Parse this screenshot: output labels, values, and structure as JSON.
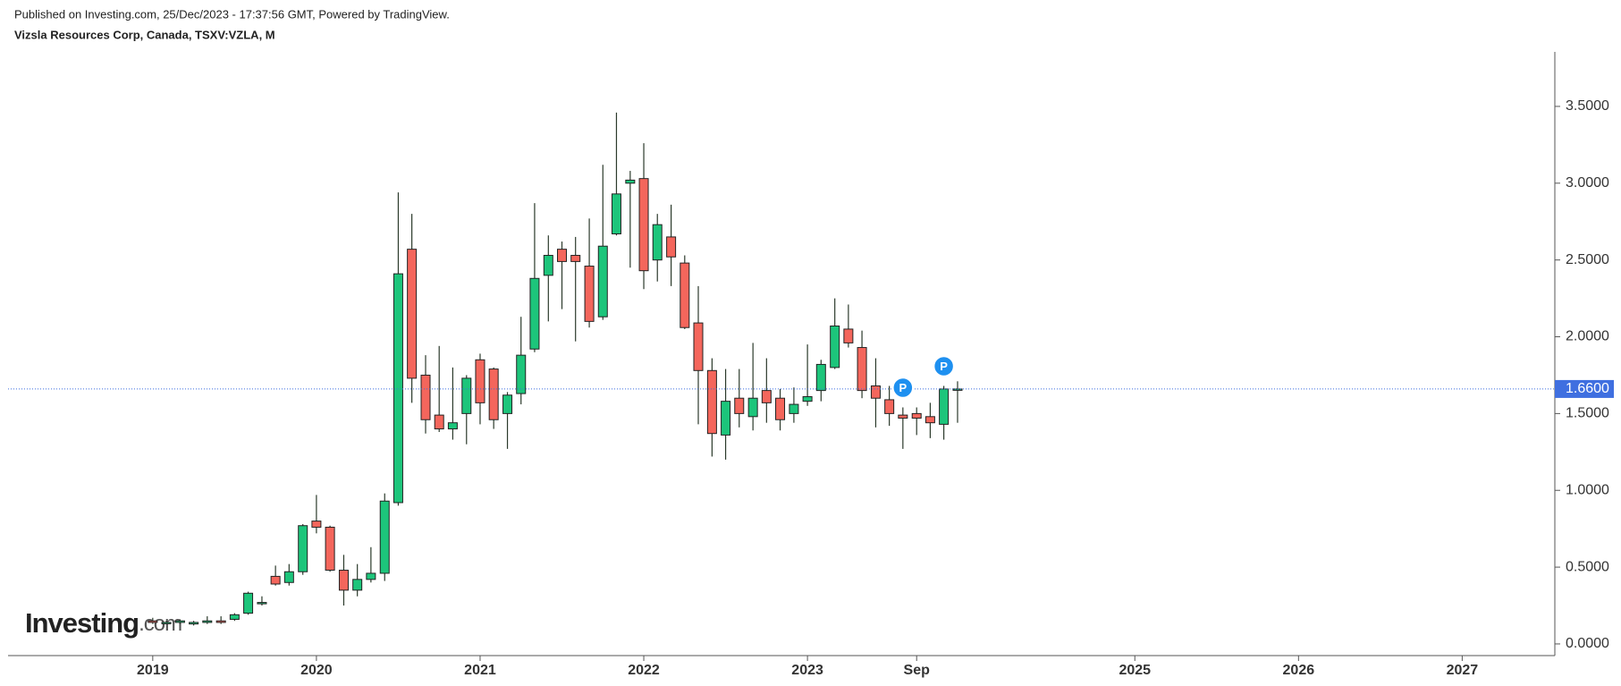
{
  "header": {
    "published": "Published on Investing.com, 25/Dec/2023 - 17:37:56 GMT, Powered by TradingView.",
    "instrument": "Vizsla Resources Corp, Canada, TSXV:VZLA, M"
  },
  "logo": {
    "name": "Investing",
    "suffix": ".com"
  },
  "chart_data": {
    "type": "candlestick",
    "x": [
      2019,
      2019.083,
      2019.167,
      2019.25,
      2019.333,
      2019.417,
      2019.5,
      2019.583,
      2019.667,
      2019.75,
      2019.833,
      2019.917,
      2020,
      2020.083,
      2020.167,
      2020.25,
      2020.333,
      2020.417,
      2020.5,
      2020.583,
      2020.667,
      2020.75,
      2020.833,
      2020.917,
      2021,
      2021.083,
      2021.167,
      2021.25,
      2021.333,
      2021.417,
      2021.5,
      2021.583,
      2021.667,
      2021.75,
      2021.833,
      2021.917,
      2022,
      2022.083,
      2022.167,
      2022.25,
      2022.333,
      2022.417,
      2022.5,
      2022.583,
      2022.667,
      2022.75,
      2022.833,
      2022.917,
      2023,
      2023.083,
      2023.167,
      2023.25,
      2023.333,
      2023.417,
      2023.5,
      2023.583,
      2023.667,
      2023.75,
      2023.833,
      2023.917
    ],
    "open": [
      0.15,
      0.14,
      0.14,
      0.13,
      0.14,
      0.15,
      0.16,
      0.2,
      0.27,
      0.44,
      0.4,
      0.47,
      0.8,
      0.76,
      0.48,
      0.35,
      0.42,
      0.46,
      0.92,
      2.57,
      1.75,
      1.49,
      1.4,
      1.5,
      1.85,
      1.79,
      1.5,
      1.63,
      1.92,
      2.4,
      2.57,
      2.53,
      2.46,
      2.13,
      2.67,
      3.0,
      3.03,
      2.5,
      2.65,
      2.48,
      2.09,
      1.78,
      1.36,
      1.6,
      1.48,
      1.65,
      1.6,
      1.5,
      1.58,
      1.65,
      1.8,
      2.05,
      1.93,
      1.68,
      1.59,
      1.49,
      1.5,
      1.48,
      1.43,
      1.66
    ],
    "high": [
      0.17,
      0.15,
      0.16,
      0.15,
      0.18,
      0.18,
      0.2,
      0.34,
      0.31,
      0.51,
      0.52,
      0.78,
      0.97,
      0.77,
      0.58,
      0.52,
      0.63,
      0.98,
      2.94,
      2.8,
      1.88,
      1.94,
      1.8,
      1.75,
      1.89,
      1.8,
      1.64,
      2.13,
      2.87,
      2.66,
      2.62,
      2.65,
      2.77,
      3.12,
      3.46,
      3.08,
      3.26,
      2.8,
      2.86,
      2.53,
      2.33,
      1.86,
      1.79,
      1.79,
      1.96,
      1.86,
      1.66,
      1.67,
      1.95,
      1.85,
      2.25,
      2.21,
      2.04,
      1.86,
      1.68,
      1.54,
      1.54,
      1.57,
      1.68,
      1.71
    ],
    "low": [
      0.13,
      0.13,
      0.13,
      0.12,
      0.13,
      0.13,
      0.15,
      0.19,
      0.25,
      0.38,
      0.38,
      0.45,
      0.72,
      0.47,
      0.25,
      0.31,
      0.4,
      0.41,
      0.9,
      1.57,
      1.37,
      1.38,
      1.33,
      1.3,
      1.43,
      1.4,
      1.27,
      1.56,
      1.9,
      2.1,
      2.18,
      1.97,
      2.06,
      2.11,
      2.66,
      2.45,
      2.31,
      2.36,
      2.33,
      2.05,
      1.43,
      1.22,
      1.2,
      1.41,
      1.39,
      1.44,
      1.39,
      1.44,
      1.55,
      1.58,
      1.79,
      1.93,
      1.6,
      1.41,
      1.42,
      1.27,
      1.36,
      1.34,
      1.33,
      1.44
    ],
    "close": [
      0.14,
      0.14,
      0.15,
      0.14,
      0.15,
      0.14,
      0.19,
      0.33,
      0.27,
      0.39,
      0.47,
      0.77,
      0.76,
      0.48,
      0.35,
      0.42,
      0.46,
      0.93,
      2.41,
      1.73,
      1.46,
      1.4,
      1.44,
      1.73,
      1.57,
      1.46,
      1.62,
      1.88,
      2.38,
      2.53,
      2.49,
      2.49,
      2.1,
      2.59,
      2.93,
      3.02,
      2.43,
      2.73,
      2.52,
      2.06,
      1.78,
      1.37,
      1.58,
      1.5,
      1.6,
      1.57,
      1.46,
      1.56,
      1.61,
      1.82,
      2.07,
      1.96,
      1.65,
      1.6,
      1.5,
      1.47,
      1.47,
      1.44,
      1.66,
      1.66
    ],
    "up_color": "#1dc57b",
    "down_color": "#f4665c",
    "last_price": {
      "value": 1.66,
      "label": "1.6600",
      "color": "#3f6fe0"
    },
    "markers": [
      {
        "x": 2023.583,
        "label": "P"
      },
      {
        "x": 2023.833,
        "label": "P"
      }
    ],
    "marker_color": "#1e90f0",
    "xlim": [
      2018.116,
      2027.566
    ],
    "xticks": [
      2019,
      2020,
      2021,
      2022,
      2023,
      {
        "value": 2023.667,
        "label": "Sep"
      },
      2025,
      2026,
      2027
    ],
    "ylim": [
      -0.076,
      3.855
    ],
    "yticks": [
      {
        "value": 0,
        "label": "0.0000"
      },
      {
        "value": 0.5,
        "label": "0.5000"
      },
      {
        "value": 1,
        "label": "1.0000"
      },
      {
        "value": 1.5,
        "label": "1.5000"
      },
      {
        "value": 2,
        "label": "2.0000"
      },
      {
        "value": 2.5,
        "label": "2.5000"
      },
      {
        "value": 3,
        "label": "3.0000"
      },
      {
        "value": 3.5,
        "label": "3.5000"
      }
    ]
  }
}
